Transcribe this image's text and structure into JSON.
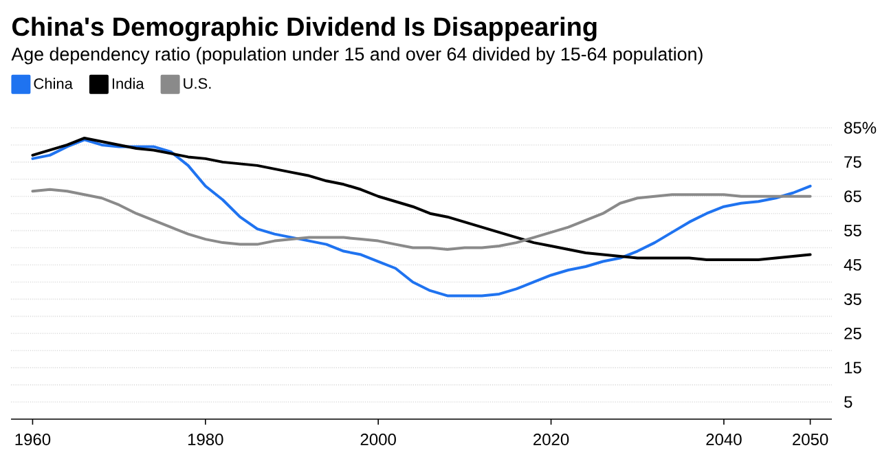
{
  "chart_data": {
    "type": "line",
    "title": "China's Demographic Dividend Is Disappearing",
    "subtitle": "Age dependency ratio (population under 15 and over 64 divided by 15-64 population)",
    "x": [
      1960,
      1962,
      1964,
      1966,
      1968,
      1970,
      1972,
      1974,
      1976,
      1978,
      1980,
      1982,
      1984,
      1986,
      1988,
      1990,
      1992,
      1994,
      1996,
      1998,
      2000,
      2002,
      2004,
      2006,
      2008,
      2010,
      2012,
      2014,
      2016,
      2018,
      2020,
      2022,
      2024,
      2026,
      2028,
      2030,
      2032,
      2034,
      2036,
      2038,
      2040,
      2042,
      2044,
      2046,
      2048,
      2050
    ],
    "series": [
      {
        "name": "China",
        "color": "#1f73f0",
        "values": [
          76,
          77,
          79.5,
          81.5,
          80,
          79.5,
          79.5,
          79.5,
          78,
          74,
          68,
          64,
          59,
          55.5,
          54,
          53,
          52,
          51,
          49,
          48,
          46,
          44,
          40,
          37.5,
          36,
          36,
          36,
          36.5,
          38,
          40,
          42,
          43.5,
          44.5,
          46,
          47,
          49,
          51.5,
          54.5,
          57.5,
          60,
          62,
          63,
          63.5,
          64.5,
          66,
          68
        ]
      },
      {
        "name": "India",
        "color": "#000000",
        "values": [
          77,
          78.5,
          80,
          82,
          81,
          80,
          79,
          78.5,
          77.5,
          76.5,
          76,
          75,
          74.5,
          74,
          73,
          72,
          71,
          69.5,
          68.5,
          67,
          65,
          63.5,
          62,
          60,
          59,
          57.5,
          56,
          54.5,
          53,
          51.5,
          50.5,
          49.5,
          48.5,
          48,
          47.5,
          47,
          47,
          47,
          47,
          46.5,
          46.5,
          46.5,
          46.5,
          47,
          47.5,
          48
        ]
      },
      {
        "name": "U.S.",
        "color": "#8a8a8a",
        "values": [
          66.5,
          67,
          66.5,
          65.5,
          64.5,
          62.5,
          60,
          58,
          56,
          54,
          52.5,
          51.5,
          51,
          51,
          52,
          52.5,
          53,
          53,
          53,
          52.5,
          52,
          51,
          50,
          50,
          49.5,
          50,
          50,
          50.5,
          51.5,
          53,
          54.5,
          56,
          58,
          60,
          63,
          64.5,
          65,
          65.5,
          65.5,
          65.5,
          65.5,
          65,
          65,
          65,
          65,
          65
        ]
      }
    ],
    "xlim": [
      1957.5,
      2052.5
    ],
    "xticks": [
      1960,
      1980,
      2000,
      2020,
      2040,
      2050
    ],
    "ylim": [
      0,
      85
    ],
    "yticks": [
      5,
      {
        "value": 10,
        "label": null
      },
      15,
      {
        "value": 20,
        "label": null
      },
      25,
      {
        "value": 30,
        "label": null
      },
      35,
      {
        "value": 40,
        "label": null
      },
      45,
      {
        "value": 50,
        "label": null
      },
      55,
      {
        "value": 60,
        "label": null
      },
      65,
      {
        "value": 70,
        "label": null
      },
      75,
      {
        "value": 80,
        "label": null
      },
      {
        "value": 85,
        "label": "85%"
      }
    ],
    "grid": "y",
    "legend": "top left"
  }
}
